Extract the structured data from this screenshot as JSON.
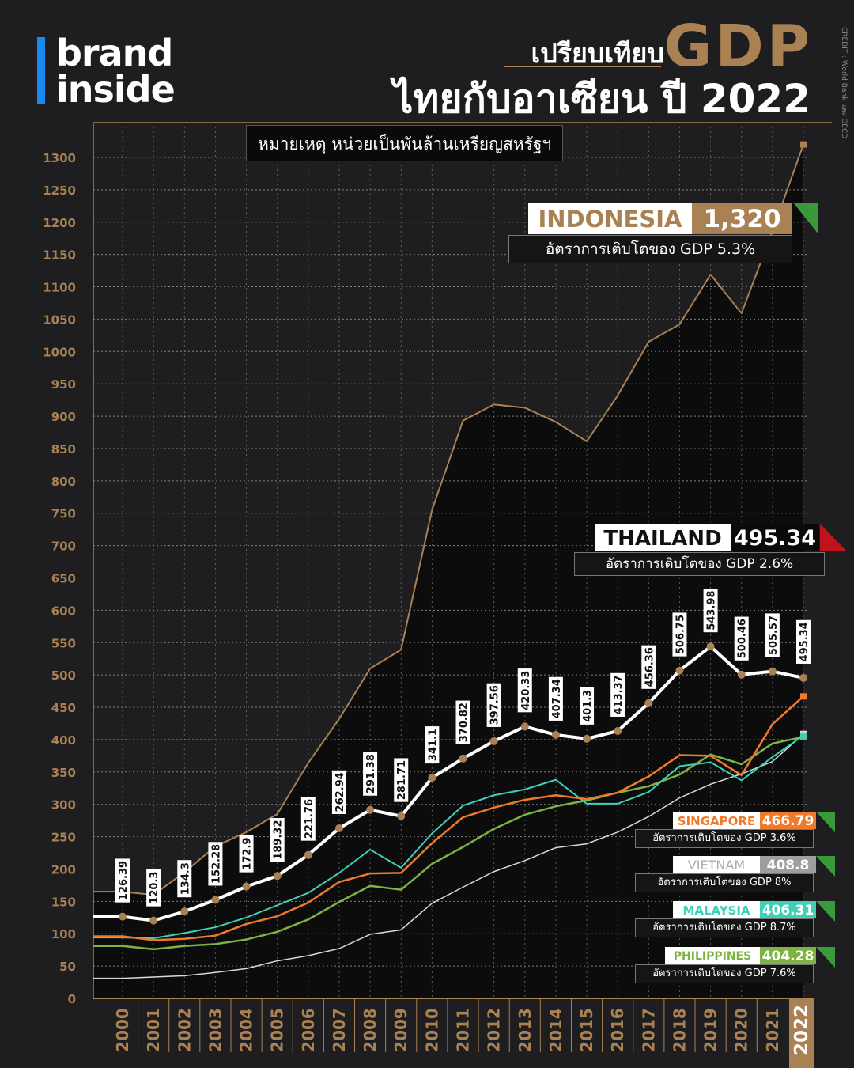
{
  "brand": {
    "line1": "brand",
    "line2": "inside",
    "accent_color": "#1a8cf0"
  },
  "header": {
    "title_line1": "เปรียบเทียบ",
    "title_gdp": "GDP",
    "title_line2": "ไทยกับอาเซียน ปี 2022",
    "credit": "CREDIT : World Bank และ OECD"
  },
  "note": "หมายเหตุ หน่วยเป็นพันล้านเหรียญสหรัฐฯ",
  "colors": {
    "background": "#1e1e20",
    "accent_gold": "#a98153",
    "indonesia": "#a98153",
    "thailand": "#ffffff",
    "singapore": "#f07a2c",
    "vietnam": "#d9d9d9",
    "malaysia": "#3ed1b7",
    "philippines": "#7cb342",
    "growth_up": "#3a9a3a",
    "growth_down": "#c0141c"
  },
  "callouts": {
    "indonesia": {
      "name": "INDONESIA",
      "value": "1,320",
      "growth": "อัตราการเติบโตของ GDP  5.3%",
      "trend": "up-icon"
    },
    "thailand": {
      "name": "THAILAND",
      "value": "495.34",
      "growth": "อัตราการเติบโตของ GDP  2.6%",
      "trend": "down-icon"
    },
    "singapore": {
      "name": "SINGAPORE",
      "value": "466.79",
      "growth": "อัตราการเติบโตของ GDP  3.6%",
      "trend": "up-icon"
    },
    "vietnam": {
      "name": "VIETNAM",
      "value": "408.8",
      "growth": "อัตราการเติบโตของ GDP  8%",
      "trend": "up-icon"
    },
    "malaysia": {
      "name": "MALAYSIA",
      "value": "406.31",
      "growth": "อัตราการเติบโตของ GDP  8.7%",
      "trend": "up-icon"
    },
    "philippines": {
      "name": "PHILIPPINES",
      "value": "404.28",
      "growth": "อัตราการเติบโตของ GDP  7.6%",
      "trend": "up-icon"
    }
  },
  "chart_data": {
    "type": "line",
    "ylim": [
      0,
      1300
    ],
    "yticks": [
      0,
      50,
      100,
      150,
      200,
      250,
      300,
      350,
      400,
      450,
      500,
      550,
      600,
      650,
      700,
      750,
      800,
      850,
      900,
      950,
      1000,
      1050,
      1100,
      1150,
      1200,
      1250,
      1300
    ],
    "x": [
      "2000",
      "2001",
      "2002",
      "2003",
      "2004",
      "2005",
      "2006",
      "2007",
      "2008",
      "2009",
      "2010",
      "2011",
      "2012",
      "2013",
      "2014",
      "2015",
      "2016",
      "2017",
      "2018",
      "2019",
      "2020",
      "2021",
      "2022"
    ],
    "grid": true,
    "series": [
      {
        "name": "INDONESIA",
        "values": [
          165,
          160,
          195,
          235,
          257,
          285,
          364,
          432,
          510,
          539,
          755,
          893,
          918,
          913,
          891,
          861,
          932,
          1015,
          1042,
          1119,
          1059,
          1186,
          1320
        ]
      },
      {
        "name": "THAILAND",
        "values": [
          126.39,
          120.3,
          134.3,
          152.28,
          172.9,
          189.32,
          221.76,
          262.94,
          291.38,
          281.71,
          341.1,
          370.82,
          397.56,
          420.33,
          407.34,
          401.3,
          413.37,
          456.36,
          506.75,
          543.98,
          500.46,
          505.57,
          495.34
        ],
        "labels": [
          "126.39",
          "120.3",
          "134.3",
          "152.28",
          "172.9",
          "189.32",
          "221.76",
          "262.94",
          "291.38",
          "281.71",
          "341.1",
          "370.82",
          "397.56",
          "420.33",
          "407.34",
          "401.3",
          "413.37",
          "456.36",
          "506.75",
          "543.98",
          "500.46",
          "505.57",
          "495.34"
        ]
      },
      {
        "name": "SINGAPORE",
        "values": [
          96,
          90,
          92,
          97,
          115,
          127,
          148,
          180,
          193,
          194,
          240,
          280,
          295,
          307,
          314,
          308,
          318,
          343,
          376,
          375,
          345,
          424,
          466.79
        ]
      },
      {
        "name": "MALAYSIA",
        "values": [
          94,
          93,
          101,
          110,
          125,
          144,
          163,
          194,
          230,
          202,
          255,
          298,
          314,
          323,
          338,
          301,
          301,
          319,
          359,
          365,
          337,
          373,
          406.31
        ]
      },
      {
        "name": "PHILIPPINES",
        "values": [
          81,
          76,
          81,
          84,
          91,
          103,
          122,
          149,
          174,
          168,
          208,
          234,
          262,
          284,
          297,
          306,
          318,
          328,
          346,
          377,
          362,
          394,
          404.28
        ]
      },
      {
        "name": "VIETNAM",
        "values": [
          31,
          33,
          35,
          40,
          46,
          58,
          66,
          77,
          99,
          106,
          147,
          172,
          196,
          213,
          233,
          239,
          257,
          281,
          310,
          331,
          347,
          366,
          408.8
        ]
      }
    ]
  }
}
